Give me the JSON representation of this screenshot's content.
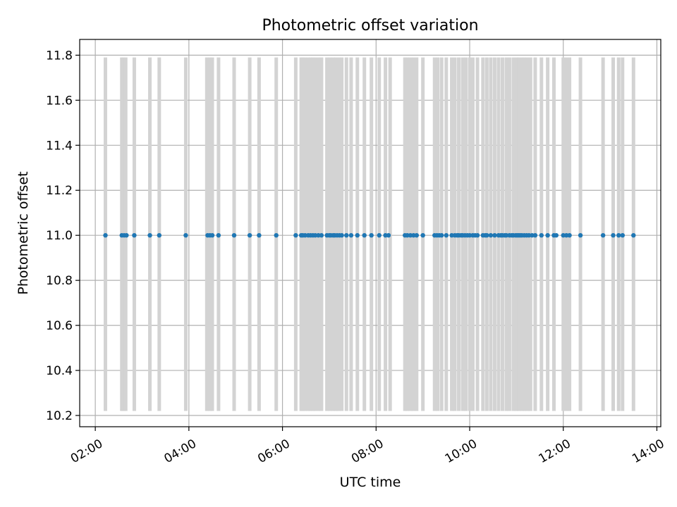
{
  "chart_data": {
    "type": "scatter",
    "title": "Photometric offset variation",
    "xlabel": "UTC time",
    "ylabel": "Photometric offset",
    "xlim": [
      "01:40",
      "14:05"
    ],
    "ylim": [
      10.15,
      11.87
    ],
    "grid": true,
    "x_ticks": [
      "02:00",
      "04:00",
      "06:00",
      "08:00",
      "10:00",
      "12:00",
      "14:00"
    ],
    "y_ticks": [
      10.2,
      10.4,
      10.6,
      10.8,
      11.0,
      11.2,
      11.4,
      11.6,
      11.8
    ],
    "colors": {
      "points": "#1f77b4",
      "bars": "#d3d3d3",
      "grid": "#b0b0b0"
    },
    "range_bars": {
      "low": 10.22,
      "high": 11.79,
      "times": [
        "02:13",
        "02:34",
        "02:36",
        "02:39",
        "02:50",
        "03:10",
        "03:22",
        "03:56",
        "04:23",
        "04:27",
        "04:30",
        "04:38",
        "04:58",
        "05:18",
        "05:30",
        "05:52",
        "06:17",
        "06:24",
        "06:26",
        "06:29",
        "06:33",
        "06:36",
        "06:39",
        "06:42",
        "06:46",
        "06:50",
        "06:57",
        "07:01",
        "07:05",
        "07:08",
        "07:12",
        "07:16",
        "07:22",
        "07:28",
        "07:36",
        "07:45",
        "07:54",
        "08:04",
        "08:12",
        "08:18",
        "08:37",
        "08:40",
        "08:44",
        "08:48",
        "08:52",
        "09:00",
        "09:15",
        "09:19",
        "09:24",
        "09:30",
        "09:37",
        "09:41",
        "09:46",
        "09:51",
        "09:55",
        "10:00",
        "10:04",
        "10:10",
        "10:17",
        "10:22",
        "10:27",
        "10:32",
        "10:37",
        "10:42",
        "10:47",
        "10:51",
        "10:56",
        "11:00",
        "11:03",
        "11:07",
        "11:10",
        "11:14",
        "11:18",
        "11:24",
        "11:32",
        "11:40",
        "11:48",
        "12:00",
        "12:04",
        "12:08",
        "12:22",
        "12:51",
        "13:04",
        "13:11",
        "13:16",
        "13:30"
      ]
    },
    "points": {
      "y": 11.0,
      "times": [
        "02:13",
        "02:34",
        "02:37",
        "02:40",
        "02:50",
        "03:10",
        "03:22",
        "03:56",
        "04:24",
        "04:27",
        "04:30",
        "04:38",
        "04:58",
        "05:18",
        "05:30",
        "05:52",
        "06:17",
        "06:24",
        "06:26",
        "06:29",
        "06:33",
        "06:36",
        "06:39",
        "06:42",
        "06:46",
        "06:50",
        "06:57",
        "07:00",
        "07:02",
        "07:05",
        "07:07",
        "07:10",
        "07:13",
        "07:16",
        "07:22",
        "07:28",
        "07:36",
        "07:45",
        "07:54",
        "08:04",
        "08:12",
        "08:16",
        "08:37",
        "08:40",
        "08:44",
        "08:48",
        "08:52",
        "09:00",
        "09:15",
        "09:18",
        "09:21",
        "09:24",
        "09:30",
        "09:37",
        "09:41",
        "09:44",
        "09:46",
        "09:49",
        "09:51",
        "09:54",
        "09:57",
        "10:00",
        "10:04",
        "10:07",
        "10:10",
        "10:17",
        "10:20",
        "10:22",
        "10:27",
        "10:32",
        "10:37",
        "10:40",
        "10:42",
        "10:45",
        "10:47",
        "10:51",
        "10:54",
        "10:56",
        "10:59",
        "11:01",
        "11:03",
        "11:05",
        "11:07",
        "11:10",
        "11:13",
        "11:16",
        "11:20",
        "11:24",
        "11:32",
        "11:40",
        "11:48",
        "11:51",
        "12:00",
        "12:04",
        "12:08",
        "12:22",
        "12:51",
        "13:04",
        "13:11",
        "13:16",
        "13:30"
      ]
    }
  }
}
